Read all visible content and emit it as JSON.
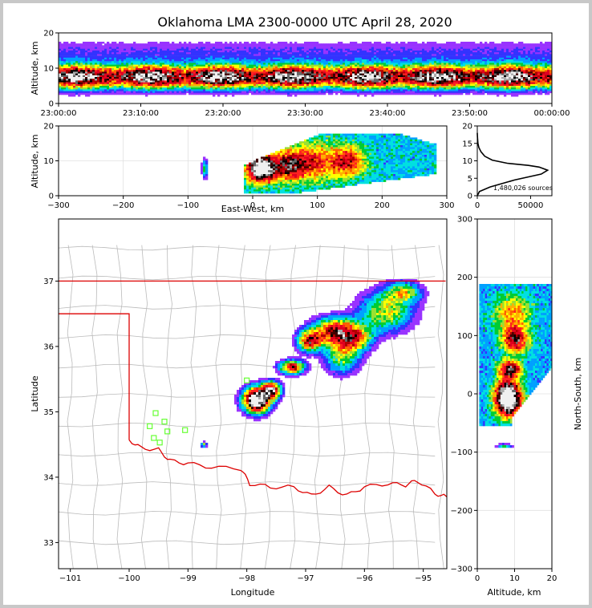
{
  "title": "Oklahoma LMA 2300-0000 UTC April 28, 2020",
  "colors": {
    "background": "#ffffff",
    "border": "#c8c8c8",
    "state_border": "#dd0000",
    "county_lines": "#bbbbbb",
    "stations": "#66ff33",
    "density_colormap": [
      "#e6ccff",
      "#9933ff",
      "#3333ff",
      "#00a0ff",
      "#00e0e0",
      "#00cc33",
      "#99e033",
      "#ffff00",
      "#ffb000",
      "#ff6000",
      "#ff2020",
      "#e00020",
      "#b00000",
      "#400000",
      "#000000",
      "#666666",
      "#aaaaaa",
      "#f0f0f0"
    ]
  },
  "chart_data": [
    {
      "id": "altitude_time",
      "type": "heatmap",
      "xlabel": "",
      "ylabel": "Altitude, km",
      "xlim": [
        "23:00:00",
        "00:00:00"
      ],
      "ylim": [
        0,
        20
      ],
      "x_ticks": [
        "23:00:00",
        "23:10:00",
        "23:20:00",
        "23:30:00",
        "23:40:00",
        "23:50:00",
        "00:00:00"
      ],
      "y_ticks": [
        "0",
        "10",
        "20"
      ],
      "core_altitude_km": 7.5,
      "altitude_range_km": [
        1,
        18
      ]
    },
    {
      "id": "east_west_altitude",
      "type": "heatmap",
      "xlabel": "East-West, km",
      "ylabel": "Altitude, km",
      "xlim": [
        -300,
        300
      ],
      "ylim": [
        0,
        20
      ],
      "x_ticks": [
        "−300",
        "−200",
        "−100",
        "0",
        "100",
        "200",
        "300"
      ],
      "y_ticks": [
        "0",
        "10",
        "20"
      ],
      "grid": true
    },
    {
      "id": "altitude_histogram",
      "type": "line",
      "xlim": [
        0,
        70000
      ],
      "ylim": [
        0,
        20
      ],
      "x_ticks": [
        "0",
        "50000"
      ],
      "y_ticks": [
        "0",
        "5",
        "10",
        "15",
        "20"
      ],
      "annotation": "1,480,026 sources",
      "curve": [
        [
          0,
          0
        ],
        [
          2000,
          1.2
        ],
        [
          12000,
          2.5
        ],
        [
          35000,
          4.5
        ],
        [
          60000,
          6.2
        ],
        [
          66000,
          7.3
        ],
        [
          58000,
          8.2
        ],
        [
          48000,
          8.7
        ],
        [
          28000,
          9.3
        ],
        [
          14000,
          10.2
        ],
        [
          7000,
          11.3
        ],
        [
          3500,
          12.6
        ],
        [
          1500,
          13.8
        ],
        [
          600,
          15
        ],
        [
          200,
          16.5
        ],
        [
          0,
          18
        ]
      ]
    },
    {
      "id": "plan_view",
      "type": "heatmap",
      "xlabel": "Longitude",
      "ylabel": "Latitude",
      "xlim": [
        -101.2,
        -94.6
      ],
      "ylim": [
        32.6,
        37.95
      ],
      "x_ticks": [
        "−101",
        "−100",
        "−99",
        "−98",
        "−97",
        "−96",
        "−95"
      ],
      "y_ticks": [
        "33",
        "34",
        "35",
        "36",
        "37"
      ],
      "stations": [
        [
          -99.55,
          34.98
        ],
        [
          -99.4,
          34.85
        ],
        [
          -99.65,
          34.78
        ],
        [
          -99.35,
          34.7
        ],
        [
          -99.58,
          34.6
        ],
        [
          -99.48,
          34.53
        ],
        [
          -99.05,
          34.72
        ],
        [
          -98.0,
          35.48
        ]
      ]
    },
    {
      "id": "north_south_altitude",
      "type": "heatmap",
      "xlabel": "Altitude, km",
      "ylabel": "North-South, km",
      "xlim": [
        0,
        20
      ],
      "ylim": [
        -300,
        300
      ],
      "x_ticks": [
        "0",
        "10",
        "20"
      ],
      "y_ticks": [
        "−300",
        "−200",
        "−100",
        "0",
        "100",
        "200",
        "300"
      ],
      "grid": true
    }
  ]
}
